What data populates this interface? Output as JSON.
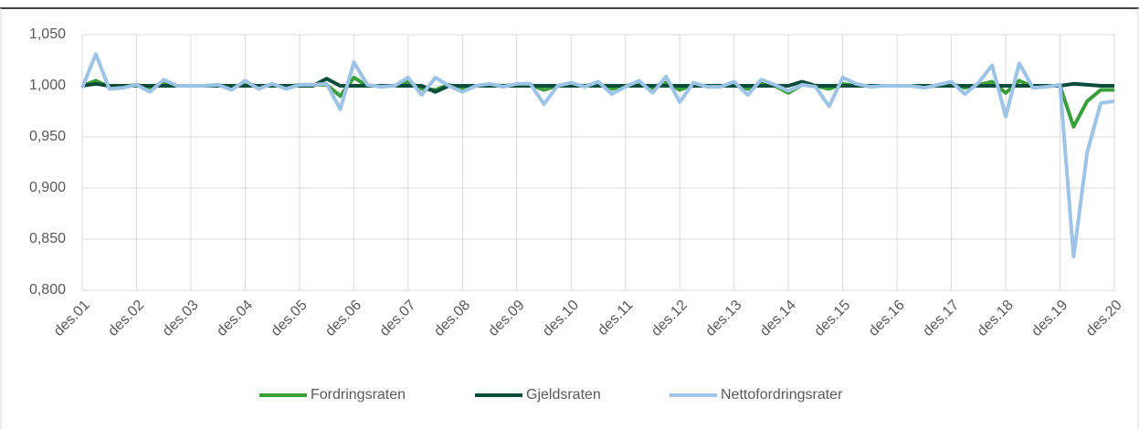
{
  "chart_data": {
    "type": "line",
    "categories": [
      "des.01",
      null,
      null,
      null,
      "des.02",
      null,
      null,
      null,
      "des.03",
      null,
      null,
      null,
      "des.04",
      null,
      null,
      null,
      "des.05",
      null,
      null,
      null,
      "des.06",
      null,
      null,
      null,
      "des.07",
      null,
      null,
      null,
      "des.08",
      null,
      null,
      null,
      "des.09",
      null,
      null,
      null,
      "des.10",
      null,
      null,
      null,
      "des.11",
      null,
      null,
      null,
      "des.12",
      null,
      null,
      null,
      "des.13",
      null,
      null,
      null,
      "des.14",
      null,
      null,
      null,
      "des.15",
      null,
      null,
      null,
      "des.16",
      null,
      null,
      null,
      "des.17",
      null,
      null,
      null,
      "des.18",
      null,
      null,
      null,
      "des.19",
      null,
      null,
      null,
      "des.20"
    ],
    "series": [
      {
        "name": "Fordringsraten",
        "color": "#3a9e3a",
        "values": [
          1.0,
          1.005,
          0.999,
          0.999,
          1.001,
          0.998,
          1.003,
          1.0,
          1.0,
          1.0,
          1.001,
          0.998,
          1.003,
          0.999,
          1.001,
          0.999,
          1.001,
          1.001,
          1.001,
          0.99,
          1.008,
          1.0,
          1.0,
          1.0,
          1.004,
          0.997,
          0.996,
          1.001,
          0.997,
          1.0,
          1.001,
          1.0,
          1.001,
          1.001,
          0.996,
          1.0,
          1.001,
          1.0,
          1.002,
          0.997,
          1.0,
          1.002,
          0.997,
          1.003,
          0.996,
          1.001,
          1.0,
          1.0,
          1.001,
          0.997,
          1.002,
          1.0,
          0.993,
          1.001,
          1.0,
          0.997,
          1.002,
          1.0,
          1.0,
          1.0,
          1.0,
          1.0,
          0.999,
          1.0,
          1.002,
          0.998,
          1.001,
          1.004,
          0.993,
          1.005,
          0.999,
          1.0,
          1.0,
          0.96,
          0.985,
          0.996,
          0.996
        ]
      },
      {
        "name": "Gjeldsraten",
        "color": "#0b4d3a",
        "values": [
          1.0,
          1.002,
          1.0,
          1.0,
          1.0,
          1.0,
          1.0,
          1.0,
          1.0,
          1.0,
          1.0,
          1.0,
          1.0,
          1.0,
          1.0,
          1.0,
          1.0,
          1.0,
          1.007,
          1.0,
          1.0,
          1.0,
          1.0,
          1.0,
          1.0,
          1.0,
          0.994,
          1.0,
          1.0,
          1.0,
          1.0,
          1.0,
          1.0,
          1.0,
          1.0,
          1.0,
          1.0,
          1.0,
          1.0,
          1.0,
          1.0,
          1.0,
          1.0,
          1.0,
          1.0,
          1.0,
          1.0,
          1.0,
          1.0,
          1.0,
          1.0,
          1.0,
          1.0,
          1.004,
          1.0,
          1.0,
          1.0,
          1.0,
          1.0,
          1.0,
          1.0,
          1.0,
          1.0,
          1.0,
          1.0,
          1.0,
          1.0,
          1.0,
          1.0,
          1.0,
          1.0,
          1.0,
          1.0,
          1.002,
          1.001,
          1.0,
          1.0
        ]
      },
      {
        "name": "Nettofordringsrater",
        "color": "#9dc3e6",
        "values": [
          0.998,
          1.031,
          0.997,
          0.998,
          1.001,
          0.994,
          1.006,
          1.0,
          1.0,
          1.0,
          1.001,
          0.996,
          1.005,
          0.997,
          1.002,
          0.997,
          1.001,
          1.001,
          1.002,
          0.977,
          1.023,
          1.001,
          0.999,
          1.0,
          1.008,
          0.991,
          1.008,
          1.0,
          0.994,
          1.0,
          1.002,
          0.999,
          1.002,
          1.002,
          0.982,
          1.0,
          1.003,
          0.999,
          1.004,
          0.992,
          0.999,
          1.005,
          0.993,
          1.009,
          0.984,
          1.003,
          0.999,
          0.999,
          1.004,
          0.991,
          1.006,
          1.001,
          0.995,
          1.001,
          0.999,
          0.98,
          1.008,
          1.002,
          0.999,
          1.0,
          1.0,
          1.0,
          0.998,
          1.001,
          1.004,
          0.992,
          1.003,
          1.02,
          0.97,
          1.022,
          0.998,
          0.999,
          1.001,
          0.833,
          0.935,
          0.983,
          0.985
        ]
      }
    ],
    "ylim": [
      0.8,
      1.05
    ],
    "yticks": [
      {
        "value": 0.8,
        "label": "0,800"
      },
      {
        "value": 0.85,
        "label": "0,850"
      },
      {
        "value": 0.9,
        "label": "0,900"
      },
      {
        "value": 0.95,
        "label": "0,950"
      },
      {
        "value": 1.0,
        "label": "1,000"
      },
      {
        "value": 1.05,
        "label": "1,050"
      }
    ],
    "grid": true,
    "legend": "bottom"
  }
}
